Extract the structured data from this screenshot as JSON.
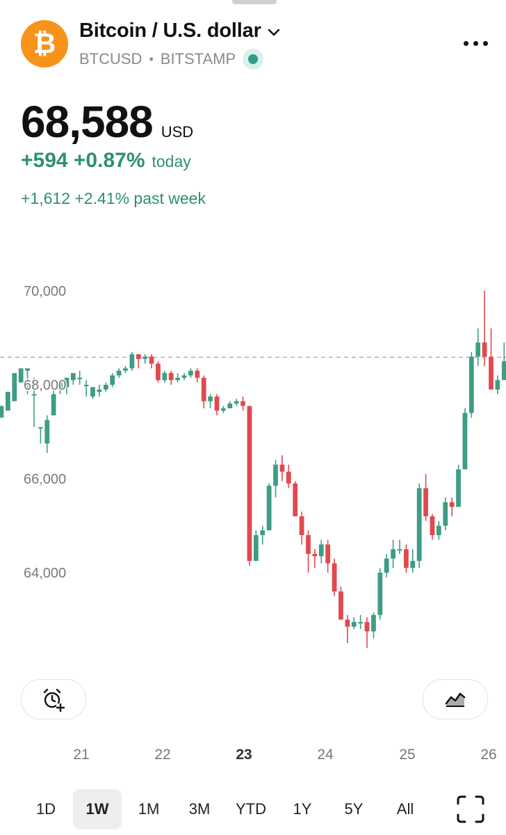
{
  "header": {
    "logo_symbol": "₿",
    "logo_color": "#F7931A",
    "title": "Bitcoin / U.S. dollar",
    "ticker": "BTCUSD",
    "separator": "•",
    "exchange": "BITSTAMP",
    "status_color": "#2e9e88"
  },
  "quote": {
    "price": "68,588",
    "currency": "USD",
    "change_today": "+594 +0.87%",
    "today_label": "today",
    "change_week": "+1,612 +2.41% past week",
    "positive_color": "#2f8f74"
  },
  "chart_data": {
    "type": "candlestick",
    "y_ticks": [
      "70,000",
      "68,000",
      "66,000",
      "64,000"
    ],
    "ylim": [
      61800,
      70400
    ],
    "last_price_line": 68588,
    "up_color": "#3d9d85",
    "down_color": "#e2484d",
    "x_labels": [
      {
        "label": "21",
        "bold": false
      },
      {
        "label": "22",
        "bold": false
      },
      {
        "label": "23",
        "bold": true
      },
      {
        "label": "24",
        "bold": false
      },
      {
        "label": "25",
        "bold": false
      },
      {
        "label": "26",
        "bold": false
      }
    ],
    "candles": [
      [
        67300,
        67550,
        67450,
        67350
      ],
      [
        67450,
        67850,
        67650,
        67450
      ],
      [
        67650,
        68250,
        68050,
        67700
      ],
      [
        68050,
        68350,
        68300,
        68050
      ],
      [
        68300,
        68350,
        67800,
        68350
      ],
      [
        67800,
        67800,
        67100,
        68150
      ],
      [
        67100,
        67100,
        66750,
        67100
      ],
      [
        66750,
        67250,
        67350,
        66550
      ],
      [
        67350,
        67800,
        67900,
        67350
      ],
      [
        67900,
        68050,
        67950,
        67800
      ],
      [
        67950,
        68150,
        68100,
        67800
      ],
      [
        68100,
        68250,
        68150,
        68000
      ],
      [
        68150,
        68150,
        68000,
        68300
      ],
      [
        68000,
        68000,
        67750,
        68100
      ],
      [
        67750,
        67950,
        67800,
        67700
      ],
      [
        67850,
        67900,
        68000,
        67750
      ],
      [
        67900,
        68000,
        68050,
        67850
      ],
      [
        68000,
        68200,
        68250,
        67950
      ],
      [
        68200,
        68300,
        68350,
        68150
      ],
      [
        68300,
        68350,
        68400,
        68250
      ],
      [
        68350,
        68650,
        68700,
        68300
      ],
      [
        68650,
        68550,
        68650,
        68350
      ],
      [
        68550,
        68600,
        68650,
        68450
      ],
      [
        68600,
        68450,
        68650,
        68350
      ],
      [
        68450,
        68100,
        68500,
        68050
      ],
      [
        68100,
        68250,
        68300,
        68050
      ],
      [
        68250,
        68100,
        68300,
        68000
      ],
      [
        68100,
        68150,
        68250,
        68050
      ],
      [
        68150,
        68200,
        68250,
        68100
      ],
      [
        68200,
        68300,
        68350,
        68150
      ],
      [
        68300,
        68150,
        68350,
        68050
      ],
      [
        68150,
        67650,
        68200,
        67500
      ],
      [
        67650,
        67750,
        67800,
        67500
      ],
      [
        67750,
        67450,
        67800,
        67350
      ],
      [
        67450,
        67500,
        67550,
        67400
      ],
      [
        67500,
        67600,
        67650,
        67500
      ],
      [
        67600,
        67650,
        67700,
        67550
      ],
      [
        67650,
        67550,
        67750,
        67450
      ],
      [
        67550,
        64250,
        67550,
        64150
      ],
      [
        64250,
        64800,
        64900,
        64300
      ],
      [
        64800,
        64900,
        65000,
        64600
      ],
      [
        64900,
        65850,
        65900,
        64900
      ],
      [
        65850,
        66300,
        66400,
        65600
      ],
      [
        66300,
        66150,
        66500,
        65950
      ],
      [
        66150,
        65900,
        66300,
        65800
      ],
      [
        65900,
        65200,
        65950,
        65200
      ],
      [
        65200,
        64800,
        65300,
        64600
      ],
      [
        64800,
        64400,
        64900,
        64000
      ],
      [
        64400,
        64350,
        64500,
        64100
      ],
      [
        64350,
        64600,
        64700,
        64200
      ],
      [
        64600,
        64200,
        64700,
        64000
      ],
      [
        64200,
        63600,
        64300,
        63500
      ],
      [
        63600,
        63000,
        63700,
        63000
      ],
      [
        63000,
        62850,
        63100,
        62500
      ],
      [
        62850,
        62950,
        63050,
        62800
      ],
      [
        62950,
        62950,
        63100,
        62800
      ],
      [
        62950,
        62750,
        63050,
        62400
      ],
      [
        62750,
        63100,
        63150,
        62600
      ],
      [
        63100,
        64000,
        64100,
        63000
      ],
      [
        64000,
        64300,
        64400,
        63900
      ],
      [
        64300,
        64500,
        64700,
        64100
      ],
      [
        64500,
        64500,
        64700,
        64400
      ],
      [
        64500,
        64100,
        64600,
        64000
      ],
      [
        64100,
        64250,
        64500,
        64000
      ],
      [
        64250,
        65800,
        65900,
        64100
      ],
      [
        65800,
        65200,
        66100,
        65100
      ],
      [
        65200,
        64800,
        65250,
        64700
      ],
      [
        64800,
        65000,
        65100,
        64700
      ],
      [
        65000,
        65500,
        65600,
        64900
      ],
      [
        65500,
        65400,
        65600,
        65200
      ],
      [
        65400,
        66200,
        66300,
        65400
      ],
      [
        66200,
        67400,
        67500,
        66200
      ],
      [
        67400,
        68600,
        68700,
        67300
      ],
      [
        68600,
        68900,
        69200,
        68400
      ],
      [
        68900,
        68600,
        70000,
        68400
      ],
      [
        68600,
        67900,
        69200,
        67900
      ],
      [
        67900,
        68100,
        68200,
        67800
      ],
      [
        68100,
        68500,
        68900,
        68100
      ]
    ]
  },
  "buttons": {
    "alert_icon": "alarm-plus-icon",
    "chart_type_icon": "area-chart-icon",
    "fullscreen_icon": "fullscreen-icon"
  },
  "timeframes": [
    "1D",
    "1W",
    "1M",
    "3M",
    "YTD",
    "1Y",
    "5Y",
    "All"
  ],
  "active_timeframe": "1W"
}
